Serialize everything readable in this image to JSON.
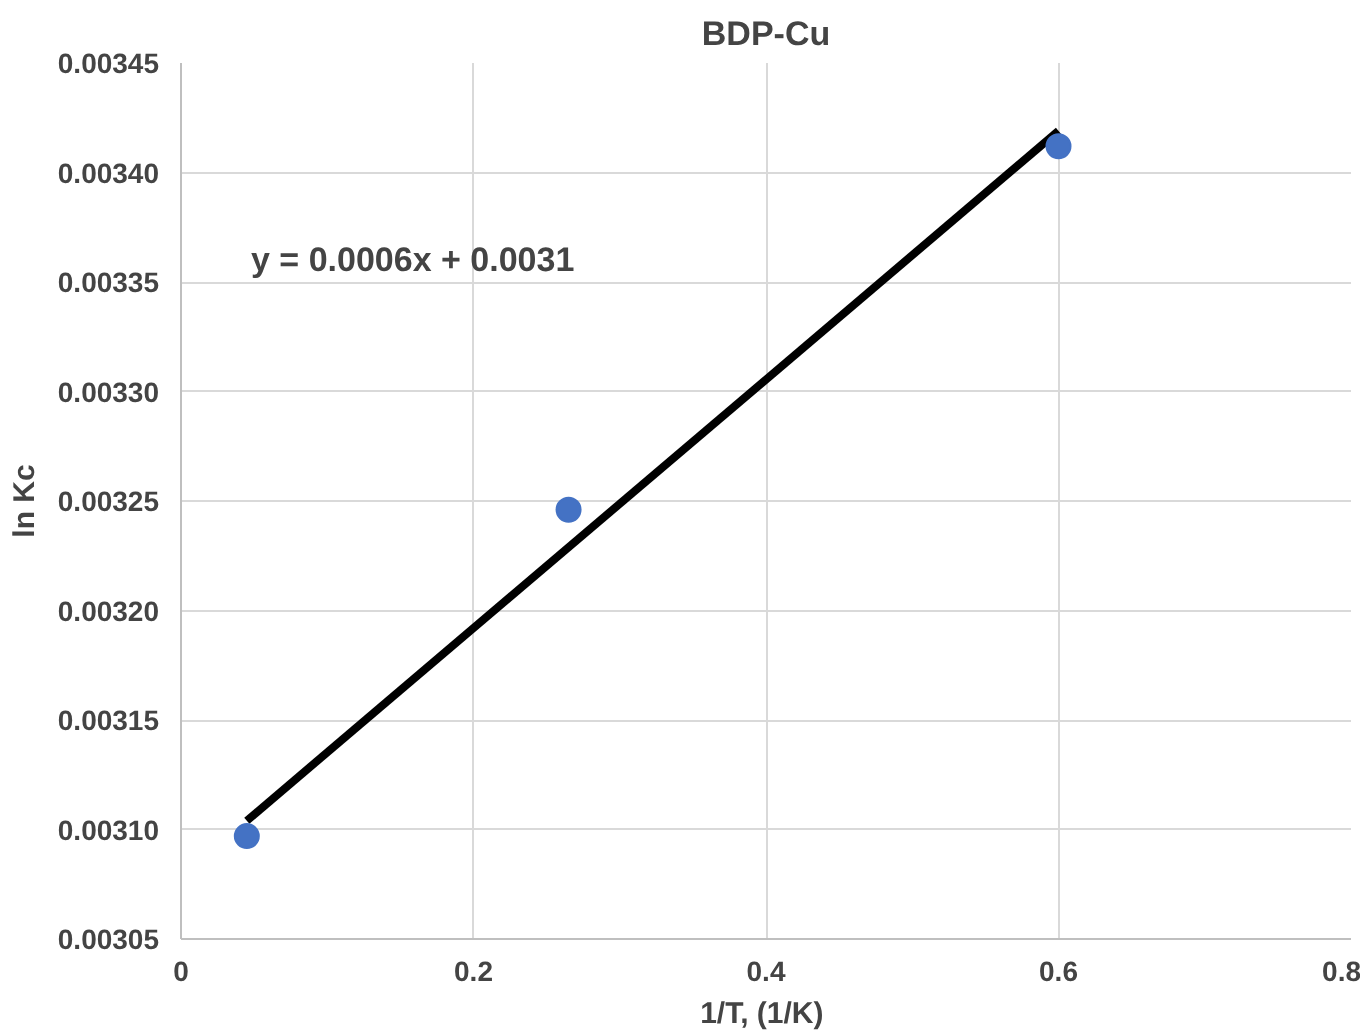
{
  "chart_data": {
    "type": "scatter",
    "title": "BDP-Cu",
    "xlabel": "1/T,  (1/K)",
    "ylabel": "ln Kc",
    "series": [
      {
        "color": "#4472c4",
        "x": [
          0.045,
          0.265,
          0.6
        ],
        "values": [
          0.003097,
          0.003246,
          0.003412
        ],
        "marker": "circle"
      },
      {
        "type": "line",
        "color": "#000000",
        "x": [
          0.045,
          0.6
        ],
        "values": [
          0.003104,
          0.003419
        ]
      }
    ],
    "annotations": [
      "y = 0.0006x + 0.0031"
    ],
    "xlim": [
      0,
      0.8
    ],
    "xticks": [
      0,
      0.2,
      0.4,
      0.6,
      0.8
    ],
    "ylim": [
      0.00305,
      0.00345
    ],
    "yticks": [
      {
        "value": 0.00305,
        "label": "0.00305"
      },
      {
        "value": 0.0031,
        "label": "0.00310"
      },
      {
        "value": 0.00315,
        "label": "0.00315"
      },
      {
        "value": 0.0032,
        "label": "0.00320"
      },
      {
        "value": 0.00325,
        "label": "0.00325"
      },
      {
        "value": 0.0033,
        "label": "0.00330"
      },
      {
        "value": 0.00335,
        "label": "0.00335"
      },
      {
        "value": 0.0034,
        "label": "0.00340"
      },
      {
        "value": 0.00345,
        "label": "0.00345"
      }
    ],
    "grid": true
  }
}
